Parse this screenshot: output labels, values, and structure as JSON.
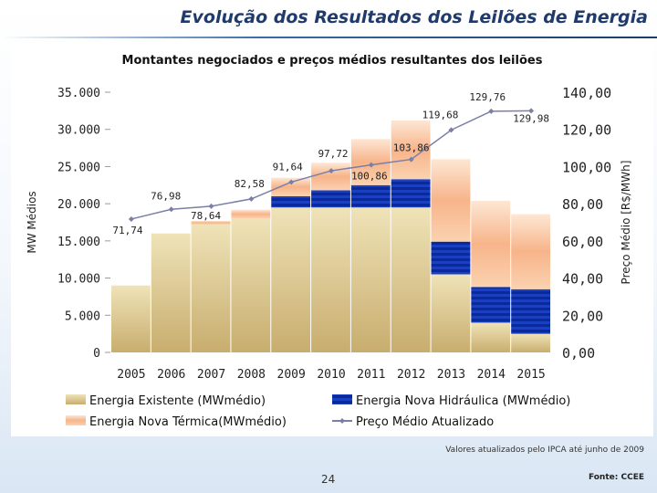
{
  "slide": {
    "title": "Evolução dos Resultados dos Leilões de Energia",
    "footnote": "Valores atualizados pelo IPCA até junho de 2009",
    "page_number": "24",
    "source": "Fonte: CCEE"
  },
  "chart_data": {
    "type": "bar",
    "stacked": true,
    "title": "Montantes negociados e preços médios resultantes dos leilões",
    "ylabel": "MW Médios",
    "y2label": "Preço Médio [R$/MWh]",
    "categories": [
      "2005",
      "2006",
      "2007",
      "2008",
      "2009",
      "2010",
      "2011",
      "2012",
      "2013",
      "2014",
      "2015"
    ],
    "ylim": [
      0,
      35000
    ],
    "y2lim": [
      0,
      140
    ],
    "yticks": [
      "0",
      "5.000",
      "10.000",
      "15.000",
      "20.000",
      "25.000",
      "30.000",
      "35.000"
    ],
    "y2ticks": [
      "0,00",
      "20,00",
      "40,00",
      "60,00",
      "80,00",
      "100,00",
      "120,00",
      "140,00"
    ],
    "series": [
      {
        "name": "Energia Existente (MWmédio)",
        "kind": "bar",
        "color": "#d6c089",
        "values": [
          9000,
          16000,
          17200,
          18000,
          19500,
          19500,
          19500,
          19500,
          10500,
          4000,
          2500
        ]
      },
      {
        "name": "Energia Nova Hidráulica (MWmédio)",
        "kind": "bar",
        "color": "#1a3fc0",
        "values": [
          0,
          0,
          0,
          0,
          1500,
          2300,
          3000,
          3800,
          4400,
          4800,
          6000
        ]
      },
      {
        "name": "Energia Nova Térmica(MWmédio)",
        "kind": "bar",
        "color": "#f7b48a",
        "values": [
          0,
          0,
          500,
          1200,
          2500,
          3700,
          6200,
          7900,
          11100,
          11600,
          10100
        ]
      },
      {
        "name": "Preço Médio Atualizado",
        "kind": "line",
        "axis": "right",
        "color": "#7b7fa6",
        "values": [
          71.74,
          76.98,
          78.64,
          82.58,
          91.64,
          97.72,
          100.86,
          103.86,
          119.68,
          129.76,
          129.98
        ]
      }
    ],
    "data_labels": [
      "71,74",
      "76,98",
      "78,64",
      "82,58",
      "91,64",
      "97,72",
      "100,86",
      "103,86",
      "119,68",
      "129,76",
      "129,98"
    ],
    "legend_position": "bottom",
    "grid": false
  }
}
